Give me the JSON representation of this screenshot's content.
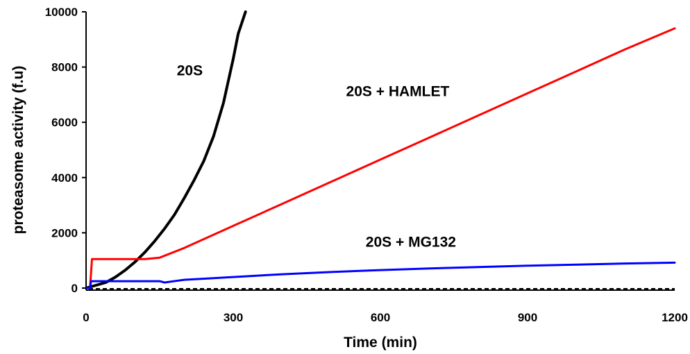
{
  "chart_data": {
    "type": "line",
    "xlabel": "Time (min)",
    "ylabel": "proteasome activity (f.u)",
    "xlim": [
      0,
      1200
    ],
    "ylim": [
      0,
      10000
    ],
    "x_ticks": [
      0,
      300,
      600,
      900,
      1200
    ],
    "y_ticks": [
      0,
      2000,
      4000,
      6000,
      8000,
      10000
    ],
    "grid": false,
    "legend": "none (series labeled inline)",
    "baseline": {
      "value": 0,
      "style": "dashed",
      "color": "#000000"
    },
    "series": [
      {
        "name": "20S",
        "color": "#000000",
        "label_at": [
          185,
          7700
        ],
        "points": [
          [
            0,
            0
          ],
          [
            20,
            100
          ],
          [
            40,
            200
          ],
          [
            60,
            400
          ],
          [
            80,
            650
          ],
          [
            100,
            950
          ],
          [
            120,
            1300
          ],
          [
            140,
            1700
          ],
          [
            160,
            2150
          ],
          [
            180,
            2650
          ],
          [
            200,
            3250
          ],
          [
            220,
            3900
          ],
          [
            240,
            4600
          ],
          [
            260,
            5500
          ],
          [
            280,
            6700
          ],
          [
            300,
            8300
          ],
          [
            310,
            9200
          ],
          [
            325,
            10000
          ]
        ]
      },
      {
        "name": "20S + HAMLET",
        "color": "#ff0000",
        "label_at": [
          530,
          6950
        ],
        "points": [
          [
            0,
            0
          ],
          [
            8,
            0
          ],
          [
            12,
            1050
          ],
          [
            40,
            1050
          ],
          [
            80,
            1050
          ],
          [
            120,
            1050
          ],
          [
            150,
            1100
          ],
          [
            200,
            1450
          ],
          [
            300,
            2250
          ],
          [
            400,
            3050
          ],
          [
            500,
            3850
          ],
          [
            600,
            4650
          ],
          [
            700,
            5450
          ],
          [
            800,
            6250
          ],
          [
            900,
            7050
          ],
          [
            1000,
            7850
          ],
          [
            1100,
            8650
          ],
          [
            1200,
            9400
          ]
        ]
      },
      {
        "name": "20S + MG132",
        "color": "#0000ff",
        "label_at": [
          570,
          1500
        ],
        "points": [
          [
            0,
            0
          ],
          [
            8,
            0
          ],
          [
            10,
            250
          ],
          [
            50,
            250
          ],
          [
            100,
            250
          ],
          [
            150,
            250
          ],
          [
            160,
            200
          ],
          [
            200,
            300
          ],
          [
            300,
            400
          ],
          [
            400,
            500
          ],
          [
            500,
            580
          ],
          [
            600,
            650
          ],
          [
            700,
            710
          ],
          [
            800,
            760
          ],
          [
            900,
            810
          ],
          [
            1000,
            850
          ],
          [
            1100,
            890
          ],
          [
            1200,
            920
          ]
        ]
      }
    ]
  }
}
